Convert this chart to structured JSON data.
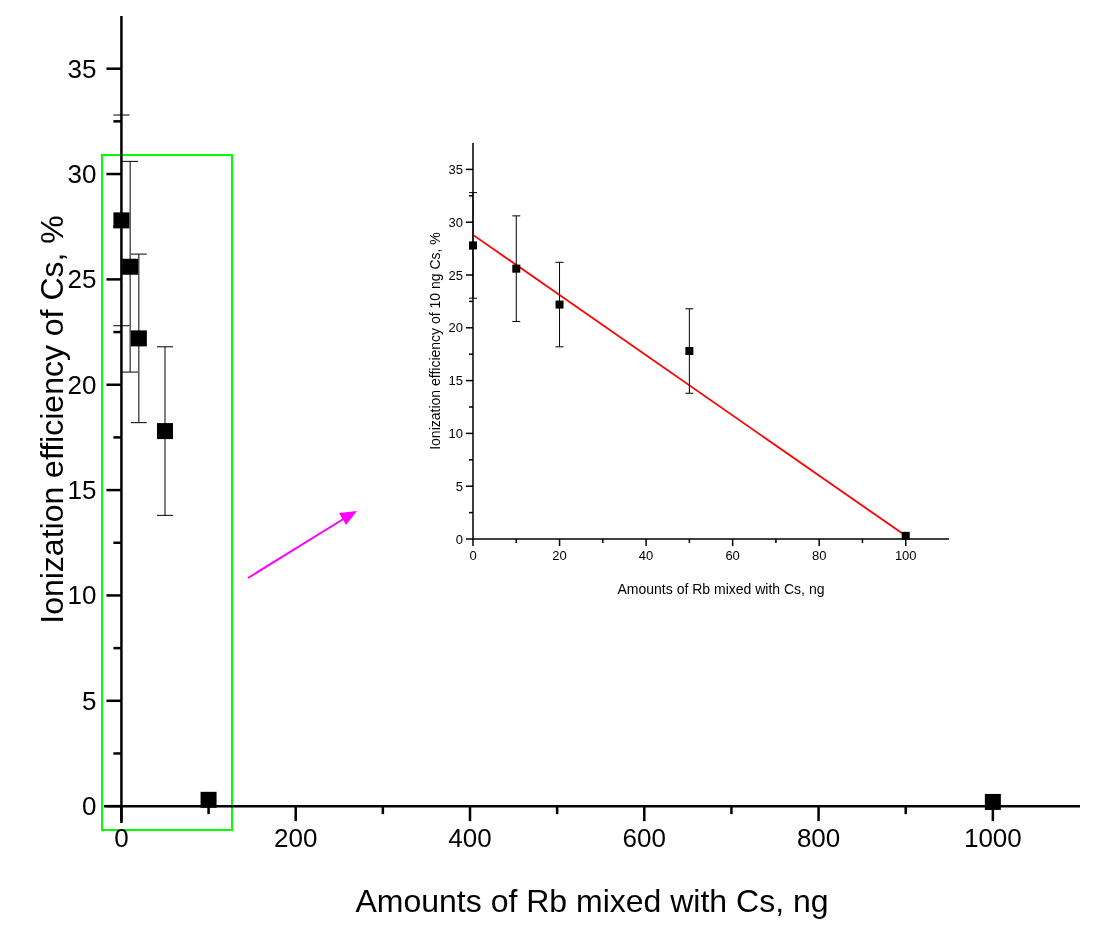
{
  "chart_data": [
    {
      "type": "scatter",
      "xlabel": "Amounts of Rb mixed with Cs, ng",
      "ylabel": "Ionization efficiency of Cs, %",
      "marker": "square",
      "xlim": [
        -20,
        1100
      ],
      "xticks": [
        0,
        {
          "value": 100,
          "label": null
        },
        200,
        {
          "value": 300,
          "label": null
        },
        400,
        {
          "value": 500,
          "label": null
        },
        600,
        {
          "value": 700,
          "label": null
        },
        800,
        {
          "value": 900,
          "label": null
        },
        1000
      ],
      "ylim": [
        -0.8,
        37.5
      ],
      "yticks": [
        0,
        {
          "value": 2.5,
          "label": null
        },
        5,
        {
          "value": 7.5,
          "label": null
        },
        10,
        {
          "value": 12.5,
          "label": null
        },
        15,
        {
          "value": 17.5,
          "label": null
        },
        20,
        {
          "value": 22.5,
          "label": null
        },
        25,
        {
          "value": 27.5,
          "label": null
        },
        30,
        {
          "value": 32.5,
          "label": null
        },
        35
      ],
      "series": [
        {
          "color": "#000000",
          "x": [
            0,
            10,
            20,
            50,
            100,
            1000
          ],
          "values": [
            27.8,
            25.6,
            22.2,
            17.8,
            0.3,
            0.2
          ],
          "errors": [
            5,
            5,
            4,
            4,
            null,
            null
          ]
        }
      ]
    },
    {
      "type": "scatter",
      "xlabel": "Amounts of Rb mixed with Cs, ng",
      "ylabel": "Ionization efficiency of 10 ng Cs, %",
      "xlim": [
        0,
        110
      ],
      "xticks": [
        0,
        {
          "value": 10,
          "label": null
        },
        20,
        {
          "value": 30,
          "label": null
        },
        40,
        {
          "value": 50,
          "label": null
        },
        60,
        {
          "value": 70,
          "label": null
        },
        80,
        {
          "value": 90,
          "label": null
        },
        100
      ],
      "ylim": [
        0,
        37.5
      ],
      "yticks": [
        0,
        {
          "value": 2.5,
          "label": null
        },
        5,
        {
          "value": 7.5,
          "label": null
        },
        10,
        {
          "value": 12.5,
          "label": null
        },
        15,
        {
          "value": 17.5,
          "label": null
        },
        20,
        {
          "value": 22.5,
          "label": null
        },
        25,
        {
          "value": 27.5,
          "label": null
        },
        30,
        {
          "value": 32.5,
          "label": null
        },
        35
      ],
      "series": [
        {
          "color": "#000000",
          "marker": "square",
          "x": [
            0,
            10,
            20,
            50,
            100
          ],
          "values": [
            27.8,
            25.6,
            22.2,
            17.8,
            0.3
          ],
          "errors": [
            5,
            5,
            4,
            4,
            null
          ]
        },
        {
          "type": "line",
          "marker": "none",
          "color": "#ff0000",
          "x": [
            0,
            100
          ],
          "values": [
            28.8,
            0.3
          ]
        }
      ]
    }
  ]
}
